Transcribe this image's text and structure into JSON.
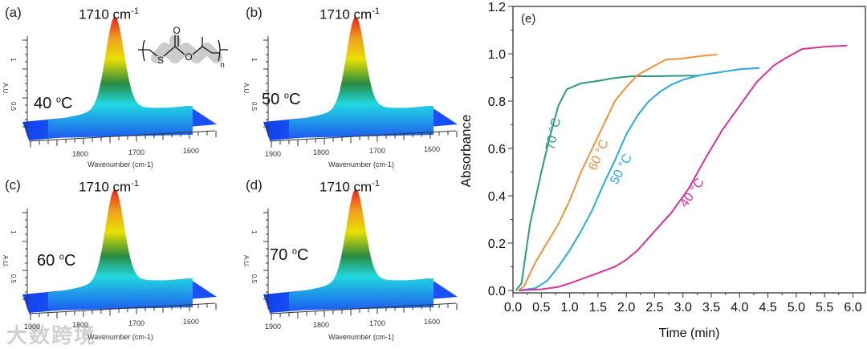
{
  "spectra_panels": [
    {
      "label": "(a)",
      "peak": "1710 cm",
      "peak_sup": "-1",
      "temp": "40 ",
      "temp_sup": "o",
      "temp_unit": "C",
      "xlabel": "Wavenumber (cm-1)",
      "xticks": [
        "1800",
        "1700",
        "1600"
      ],
      "yticks": [
        "1",
        "0.5"
      ],
      "ylabel": "A.U.",
      "structure": {
        "atoms": [
          "S",
          "O",
          "O",
          "n"
        ]
      }
    },
    {
      "label": "(b)",
      "peak": "1710 cm",
      "peak_sup": "-1",
      "temp": "50 ",
      "temp_sup": "o",
      "temp_unit": "C",
      "xlabel": "Wavenumber (cm-1)",
      "xticks": [
        "1900",
        "1800",
        "1700",
        "1600"
      ],
      "yticks": [
        "1",
        "0.5"
      ],
      "ylabel": "A.U."
    },
    {
      "label": "(c)",
      "peak": "1710 cm",
      "peak_sup": "-1",
      "temp": "60 ",
      "temp_sup": "o",
      "temp_unit": "C",
      "xlabel": "Wavenumber (cm-1)",
      "xticks": [
        "1900",
        "1800",
        "1700",
        "1600"
      ],
      "yticks": [
        "1",
        "0.5"
      ],
      "ylabel": "A.U."
    },
    {
      "label": "(d)",
      "peak": "1710 cm",
      "peak_sup": "-1",
      "temp": "70 ",
      "temp_sup": "o",
      "temp_unit": "C",
      "xlabel": "Wavenumber (cm-1)",
      "xticks": [
        "1900",
        "1800",
        "1700",
        "1600"
      ],
      "yticks": [
        "1",
        "0.5"
      ],
      "ylabel": "A.U."
    }
  ],
  "watermark": "大数跨境",
  "chart_data": {
    "type": "line",
    "panel_label": "(e)",
    "xlabel": "Time (min)",
    "ylabel": "Absorbance",
    "xlim": [
      0,
      6.22
    ],
    "ylim": [
      -0.01,
      1.2
    ],
    "xticks": [
      0,
      0.5,
      1,
      1.5,
      2,
      2.5,
      3,
      3.5,
      4,
      4.5,
      5,
      5.5,
      6
    ],
    "xtick_labels": [
      "0.0",
      "0.5",
      "1.0",
      "1.5",
      "2.0",
      "2.5",
      "3.0",
      "3.5",
      "4.0",
      "4.5",
      "5.0",
      "5.5",
      "6.0"
    ],
    "yticks": [
      0,
      0.2,
      0.4,
      0.6,
      0.8,
      1.0,
      1.2
    ],
    "ytick_labels": [
      "0.0",
      "0.2",
      "0.4",
      "0.6",
      "0.8",
      "1.0",
      "1.2"
    ],
    "grid": false,
    "series": [
      {
        "name": "70 °C",
        "color": "#2e9a7d",
        "x": [
          0.05,
          0.15,
          0.3,
          0.5,
          0.65,
          0.8,
          0.95,
          1.2,
          1.5,
          1.8,
          2.1,
          2.5,
          3.0,
          3.3
        ],
        "y": [
          0,
          0.03,
          0.28,
          0.5,
          0.65,
          0.78,
          0.85,
          0.875,
          0.885,
          0.898,
          0.905,
          0.905,
          0.907,
          0.908
        ]
      },
      {
        "name": "60 °C",
        "color": "#f0923c",
        "x": [
          0.1,
          0.2,
          0.4,
          0.6,
          0.8,
          1.0,
          1.2,
          1.4,
          1.6,
          1.8,
          2.0,
          2.2,
          2.5,
          2.7,
          3.0,
          3.3,
          3.6
        ],
        "y": [
          0,
          0.02,
          0.12,
          0.2,
          0.28,
          0.38,
          0.5,
          0.6,
          0.7,
          0.8,
          0.86,
          0.91,
          0.95,
          0.975,
          0.98,
          0.99,
          0.997
        ]
      },
      {
        "name": "50 °C",
        "color": "#29abe2",
        "x": [
          0.1,
          0.4,
          0.6,
          0.8,
          1.0,
          1.2,
          1.4,
          1.6,
          1.8,
          2.0,
          2.2,
          2.4,
          2.6,
          2.8,
          3.0,
          3.3,
          3.6,
          4.0,
          4.35
        ],
        "y": [
          0,
          0.01,
          0.04,
          0.1,
          0.17,
          0.25,
          0.34,
          0.45,
          0.55,
          0.66,
          0.74,
          0.8,
          0.84,
          0.87,
          0.89,
          0.91,
          0.92,
          0.935,
          0.94
        ]
      },
      {
        "name": "40 °C",
        "color": "#d6339b",
        "x": [
          0.1,
          0.5,
          0.8,
          1.0,
          1.4,
          1.8,
          2.0,
          2.2,
          2.5,
          2.8,
          3.1,
          3.4,
          3.7,
          4.0,
          4.3,
          4.6,
          4.8,
          5.1,
          5.5,
          5.9
        ],
        "y": [
          0,
          0.005,
          0.015,
          0.03,
          0.065,
          0.1,
          0.13,
          0.17,
          0.25,
          0.33,
          0.43,
          0.56,
          0.68,
          0.78,
          0.88,
          0.95,
          0.98,
          1.02,
          1.03,
          1.035
        ]
      }
    ],
    "curve_labels": [
      "70 °C",
      "60 °C",
      "50 °C",
      "40 °C"
    ]
  }
}
